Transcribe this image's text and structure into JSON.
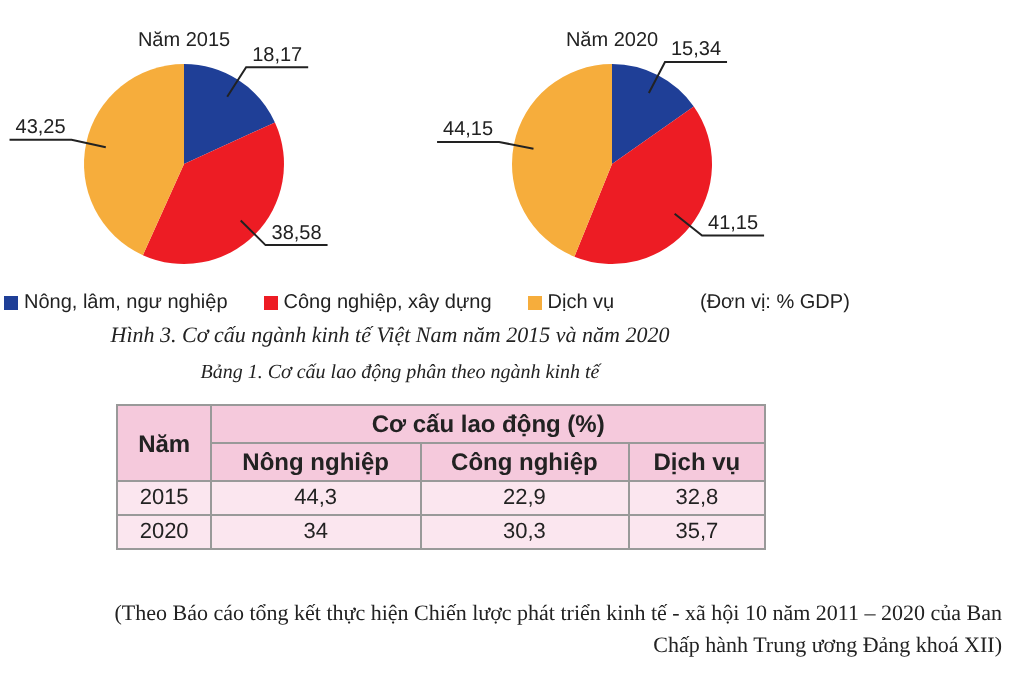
{
  "chart_data": [
    {
      "type": "pie",
      "title": "Năm 2015",
      "categories": [
        "Nông, lâm, ngư nghiệp",
        "Công nghiệp, xây dựng",
        "Dịch vụ"
      ],
      "values": [
        18.17,
        38.58,
        43.25
      ],
      "colors": [
        "#1f3f97",
        "#ed1c24",
        "#f6ad3c"
      ],
      "value_labels": [
        "18,17",
        "38,58",
        "43,25"
      ],
      "legend": "bottom"
    },
    {
      "type": "pie",
      "title": "Năm 2020",
      "categories": [
        null,
        null,
        null
      ],
      "values": [
        15.34,
        41.15,
        44.15
      ],
      "colors": [
        "#1f3f97",
        "#ed1c24",
        "#f6ad3c"
      ],
      "value_labels": [
        "15,34",
        "41,15",
        "44,15"
      ],
      "annotations": [
        "(Đơn vị: % GDP)",
        "Hình 3. Cơ cấu ngành kinh tế Việt Nam năm 2015 và năm 2020"
      ]
    },
    {
      "type": "other",
      "title": "Bảng 1. Cơ cấu lao động phân theo ngành kinh tế",
      "ylabel": "Năm",
      "xlabel": "Cơ cấu lao động (%)",
      "categories": [
        "Nông nghiệp",
        "Công nghiệp",
        "Dịch vụ"
      ],
      "series": [
        {
          "name": "2015",
          "values": [
            44.3,
            22.9,
            32.8
          ],
          "value_labels": [
            "44,3",
            "22,9",
            "32,8"
          ]
        },
        {
          "name": "2020",
          "values": [
            34,
            30.3,
            35.7
          ],
          "value_labels": [
            "34",
            "30,3",
            "35,7"
          ]
        }
      ],
      "annotations": [
        "(Theo Báo cáo tổng kết thực hiện Chiến lược phát triển kinh tế - xã hội 10 năm 2011 – 2020 của Ban Chấp hành Trung ương Đảng khoá XII)"
      ]
    }
  ]
}
